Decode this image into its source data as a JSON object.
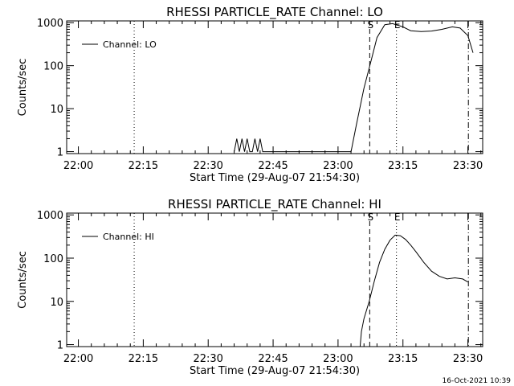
{
  "chart_data": [
    {
      "type": "line",
      "title": "RHESSI PARTICLE_RATE Channel: LO",
      "xlabel": "Start Time (29-Aug-07 21:54:30)",
      "ylabel": "Counts/sec",
      "y_scale": "log",
      "ylim": [
        0.9,
        1100
      ],
      "y_ticks": [
        {
          "value": 1,
          "label": "1"
        },
        {
          "value": 10,
          "label": "10"
        },
        {
          "value": 100,
          "label": "100"
        },
        {
          "value": 1000,
          "label": "1000"
        }
      ],
      "xlim": [
        21.955,
        23.557
      ],
      "x_ticks": [
        {
          "value": 22.0,
          "label": "22:00"
        },
        {
          "value": 22.25,
          "label": "22:15"
        },
        {
          "value": 22.5,
          "label": "22:30"
        },
        {
          "value": 22.75,
          "label": "22:45"
        },
        {
          "value": 23.0,
          "label": "23:00"
        },
        {
          "value": 23.25,
          "label": "23:15"
        },
        {
          "value": 23.5,
          "label": "23:30"
        }
      ],
      "legend": {
        "position": "top-left",
        "entries": [
          "Channel: LO"
        ]
      },
      "series": [
        {
          "name": "Channel: LO",
          "x": [
            22.6,
            22.61,
            22.62,
            22.63,
            22.64,
            22.65,
            22.66,
            22.67,
            22.68,
            22.69,
            22.7,
            22.71,
            22.72,
            23.05,
            23.07,
            23.1,
            23.13,
            23.15,
            23.18,
            23.21,
            23.25,
            23.28,
            23.32,
            23.36,
            23.4,
            23.44,
            23.47,
            23.5,
            23.52
          ],
          "y": [
            1,
            2,
            1,
            2,
            1,
            2,
            1,
            1,
            2,
            1,
            2,
            1,
            1,
            1,
            4,
            30,
            150,
            450,
            900,
            950,
            800,
            650,
            620,
            640,
            700,
            800,
            750,
            500,
            200
          ]
        }
      ],
      "vertical_lines": [
        {
          "x": 22.215,
          "style": "dotted",
          "label": ""
        },
        {
          "x": 23.122,
          "style": "dashed",
          "label": "S"
        },
        {
          "x": 23.225,
          "style": "dotted",
          "label": "E"
        },
        {
          "x": 23.502,
          "style": "dashdot",
          "label": ""
        }
      ]
    },
    {
      "type": "line",
      "title": "RHESSI PARTICLE_RATE Channel: HI",
      "xlabel": "Start Time (29-Aug-07 21:54:30)",
      "ylabel": "Counts/sec",
      "y_scale": "log",
      "ylim": [
        0.9,
        1100
      ],
      "y_ticks": [
        {
          "value": 1,
          "label": "1"
        },
        {
          "value": 10,
          "label": "10"
        },
        {
          "value": 100,
          "label": "100"
        },
        {
          "value": 1000,
          "label": "1000"
        }
      ],
      "xlim": [
        21.955,
        23.557
      ],
      "x_ticks": [
        {
          "value": 22.0,
          "label": "22:00"
        },
        {
          "value": 22.25,
          "label": "22:15"
        },
        {
          "value": 22.5,
          "label": "22:30"
        },
        {
          "value": 22.75,
          "label": "22:45"
        },
        {
          "value": 23.0,
          "label": "23:00"
        },
        {
          "value": 23.25,
          "label": "23:15"
        },
        {
          "value": 23.5,
          "label": "23:30"
        }
      ],
      "legend": {
        "position": "top-left",
        "entries": [
          "Channel: HI"
        ]
      },
      "series": [
        {
          "name": "Channel: HI",
          "x": [
            23.085,
            23.09,
            23.1,
            23.12,
            23.14,
            23.16,
            23.18,
            23.2,
            23.22,
            23.24,
            23.26,
            23.28,
            23.3,
            23.33,
            23.36,
            23.39,
            23.42,
            23.45,
            23.48,
            23.5
          ],
          "y": [
            0.9,
            2,
            4,
            10,
            30,
            80,
            160,
            260,
            340,
            330,
            270,
            200,
            140,
            80,
            50,
            38,
            33,
            35,
            33,
            28
          ]
        }
      ],
      "vertical_lines": [
        {
          "x": 22.215,
          "style": "dotted",
          "label": ""
        },
        {
          "x": 23.122,
          "style": "dashed",
          "label": "S"
        },
        {
          "x": 23.225,
          "style": "dotted",
          "label": "E"
        },
        {
          "x": 23.502,
          "style": "dashdot",
          "label": ""
        }
      ]
    }
  ],
  "footer": {
    "timestamp": "16-Oct-2021 10:39"
  }
}
